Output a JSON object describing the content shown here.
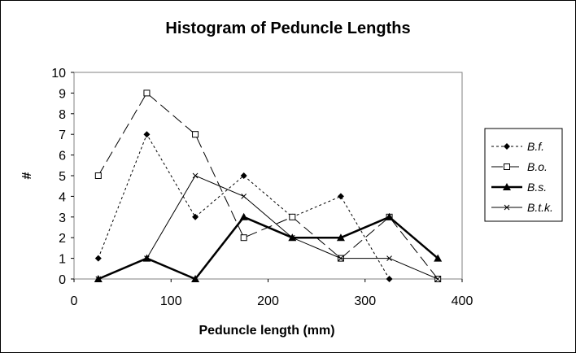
{
  "chart_data": {
    "type": "line",
    "title": "Histogram of Peduncle Lengths",
    "xlabel": "Peduncle length (mm)",
    "ylabel": "#",
    "xlim": [
      0,
      400
    ],
    "ylim": [
      0,
      10
    ],
    "xticks": [
      0,
      100,
      200,
      300,
      400
    ],
    "yticks": [
      0,
      1,
      2,
      3,
      4,
      5,
      6,
      7,
      8,
      9,
      10
    ],
    "x": [
      25,
      75,
      125,
      175,
      225,
      275,
      325,
      375
    ],
    "grid": false,
    "legend_position": "right",
    "series": [
      {
        "name": "B.f.",
        "marker": "diamond",
        "line": "dotted",
        "values": [
          1,
          7,
          3,
          5,
          3,
          4,
          0,
          null
        ]
      },
      {
        "name": "B.o.",
        "marker": "open-square",
        "line": "long-dash",
        "values": [
          5,
          9,
          7,
          2,
          3,
          1,
          3,
          0
        ]
      },
      {
        "name": "B.s.",
        "marker": "filled-triangle",
        "line": "thick-solid",
        "values": [
          0,
          1,
          0,
          3,
          2,
          2,
          3,
          1
        ]
      },
      {
        "name": "B.t.k.",
        "marker": "x",
        "line": "thin-solid",
        "values": [
          0,
          1,
          5,
          4,
          2,
          1,
          1,
          0
        ]
      }
    ]
  }
}
